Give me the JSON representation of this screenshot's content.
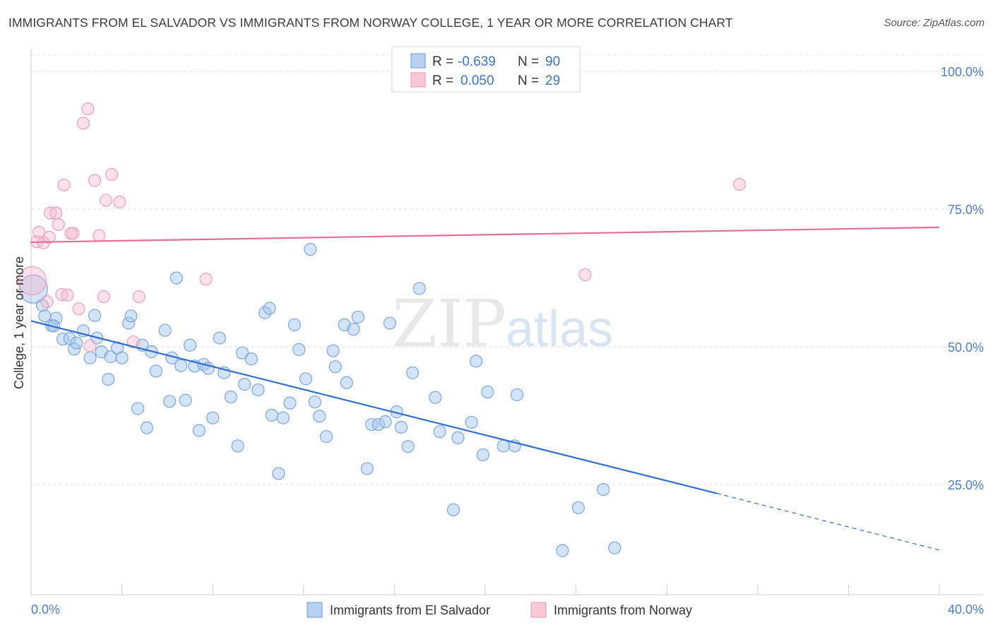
{
  "title": "IMMIGRANTS FROM EL SALVADOR VS IMMIGRANTS FROM NORWAY COLLEGE, 1 YEAR OR MORE CORRELATION CHART",
  "source": "Source: ZipAtlas.com",
  "watermark": {
    "zip": "ZIP",
    "atlas": "atlas"
  },
  "colors": {
    "blue": "#4a7cc9",
    "blue_fill": "rgba(160,195,240,0.45)",
    "blue_stroke": "#7aa6e0",
    "blue_line": "#2f6fd0",
    "pink": "#e56d97",
    "pink_fill": "rgba(245,180,200,0.40)",
    "pink_stroke": "#eea0ba"
  },
  "legend": {
    "rows": [
      {
        "r_label": "R =",
        "r_value": "-0.639",
        "n_label": "N =",
        "n_value": "90",
        "series": "blue"
      },
      {
        "r_label": "R =",
        "r_value": "0.050",
        "n_label": "N =",
        "n_value": "29",
        "series": "pink"
      }
    ]
  },
  "chart_data": {
    "type": "scatter",
    "xlabel": "",
    "ylabel": "College, 1 year or more",
    "xlim": [
      0,
      40
    ],
    "ylim": [
      5,
      104
    ],
    "x_tick_labels": [
      {
        "value": 0,
        "label": "0.0%"
      },
      {
        "value": 40,
        "label": "40.0%"
      }
    ],
    "y_tick_labels": [
      {
        "value": 100,
        "label": "100.0%"
      },
      {
        "value": 75,
        "label": "75.0%"
      },
      {
        "value": 50,
        "label": "50.0%"
      },
      {
        "value": 25,
        "label": "25.0%"
      }
    ],
    "legend_placement": "top-center",
    "grid": "horizontal dashed",
    "series": [
      {
        "name": "Immigrants from El Salvador",
        "color": "blue",
        "trend": {
          "x0": 0,
          "y0": 54.7,
          "x1": 30.2,
          "y1": 23.4,
          "dash_to_x": 40,
          "dash_to_y": 13.1
        },
        "points": [
          [
            0.1,
            60.5
          ],
          [
            0.5,
            57.5
          ],
          [
            0.6,
            55.6
          ],
          [
            0.9,
            53.9
          ],
          [
            1.1,
            55.2
          ],
          [
            1.0,
            53.8
          ],
          [
            1.4,
            51.4
          ],
          [
            1.7,
            51.5
          ],
          [
            1.9,
            49.6
          ],
          [
            2.0,
            50.7
          ],
          [
            2.3,
            52.9
          ],
          [
            2.6,
            48.0
          ],
          [
            2.8,
            55.7
          ],
          [
            2.9,
            51.6
          ],
          [
            3.1,
            49.1
          ],
          [
            3.4,
            44.1
          ],
          [
            3.5,
            48.2
          ],
          [
            3.8,
            49.8
          ],
          [
            4.0,
            48.0
          ],
          [
            4.3,
            54.3
          ],
          [
            4.4,
            55.6
          ],
          [
            4.7,
            38.8
          ],
          [
            4.9,
            50.3
          ],
          [
            5.1,
            35.3
          ],
          [
            5.3,
            49.1
          ],
          [
            5.5,
            45.6
          ],
          [
            5.9,
            53.0
          ],
          [
            6.1,
            40.1
          ],
          [
            6.2,
            48.0
          ],
          [
            6.4,
            62.5
          ],
          [
            6.6,
            46.6
          ],
          [
            6.8,
            40.3
          ],
          [
            7.0,
            50.3
          ],
          [
            7.2,
            46.5
          ],
          [
            7.4,
            34.8
          ],
          [
            7.6,
            46.8
          ],
          [
            7.8,
            46.1
          ],
          [
            8.0,
            37.1
          ],
          [
            8.3,
            51.6
          ],
          [
            8.5,
            45.3
          ],
          [
            8.8,
            40.9
          ],
          [
            9.1,
            32.0
          ],
          [
            9.3,
            48.9
          ],
          [
            9.4,
            43.2
          ],
          [
            9.7,
            47.8
          ],
          [
            10.0,
            42.2
          ],
          [
            10.3,
            56.2
          ],
          [
            10.5,
            57.0
          ],
          [
            10.6,
            37.6
          ],
          [
            10.9,
            27.0
          ],
          [
            11.1,
            37.1
          ],
          [
            11.4,
            39.8
          ],
          [
            11.6,
            54.0
          ],
          [
            11.8,
            49.5
          ],
          [
            12.1,
            44.2
          ],
          [
            12.3,
            67.7
          ],
          [
            12.5,
            40.0
          ],
          [
            12.7,
            37.4
          ],
          [
            13.0,
            33.7
          ],
          [
            13.3,
            49.3
          ],
          [
            13.4,
            46.4
          ],
          [
            13.8,
            54.0
          ],
          [
            13.9,
            43.5
          ],
          [
            14.2,
            53.2
          ],
          [
            14.4,
            55.4
          ],
          [
            14.8,
            27.9
          ],
          [
            15.0,
            35.9
          ],
          [
            15.3,
            35.9
          ],
          [
            15.6,
            36.4
          ],
          [
            15.8,
            54.3
          ],
          [
            16.1,
            38.2
          ],
          [
            16.3,
            35.4
          ],
          [
            16.6,
            31.9
          ],
          [
            16.8,
            45.3
          ],
          [
            17.1,
            60.6
          ],
          [
            17.8,
            40.8
          ],
          [
            18.0,
            34.6
          ],
          [
            18.6,
            20.4
          ],
          [
            18.8,
            33.5
          ],
          [
            19.4,
            36.3
          ],
          [
            19.6,
            47.4
          ],
          [
            19.9,
            30.4
          ],
          [
            20.1,
            41.8
          ],
          [
            20.8,
            32.0
          ],
          [
            21.3,
            32.0
          ],
          [
            21.4,
            41.3
          ],
          [
            23.4,
            13.0
          ],
          [
            24.1,
            20.8
          ],
          [
            25.2,
            24.1
          ],
          [
            25.7,
            13.5
          ]
        ]
      },
      {
        "name": "Immigrants from Norway",
        "color": "pink",
        "trend": {
          "x0": 0,
          "y0": 69.0,
          "x1": 40,
          "y1": 71.7
        },
        "points": [
          [
            0.05,
            62.0
          ],
          [
            0.25,
            69.1
          ],
          [
            0.35,
            70.8
          ],
          [
            0.55,
            68.9
          ],
          [
            0.7,
            58.2
          ],
          [
            0.8,
            69.9
          ],
          [
            0.85,
            74.3
          ],
          [
            1.1,
            74.3
          ],
          [
            1.2,
            72.2
          ],
          [
            1.35,
            59.5
          ],
          [
            1.45,
            79.4
          ],
          [
            1.6,
            59.4
          ],
          [
            1.75,
            70.6
          ],
          [
            1.85,
            70.6
          ],
          [
            2.1,
            56.9
          ],
          [
            2.3,
            90.6
          ],
          [
            2.5,
            93.2
          ],
          [
            2.6,
            50.2
          ],
          [
            2.8,
            80.2
          ],
          [
            3.0,
            70.2
          ],
          [
            3.2,
            59.1
          ],
          [
            3.3,
            76.6
          ],
          [
            3.55,
            81.3
          ],
          [
            3.9,
            76.3
          ],
          [
            4.5,
            50.9
          ],
          [
            4.75,
            59.1
          ],
          [
            7.7,
            62.3
          ],
          [
            24.4,
            63.1
          ],
          [
            31.2,
            79.5
          ]
        ]
      }
    ]
  },
  "bottom_legend": [
    {
      "label": "Immigrants from El Salvador",
      "series": "blue"
    },
    {
      "label": "Immigrants from Norway",
      "series": "pink"
    }
  ]
}
